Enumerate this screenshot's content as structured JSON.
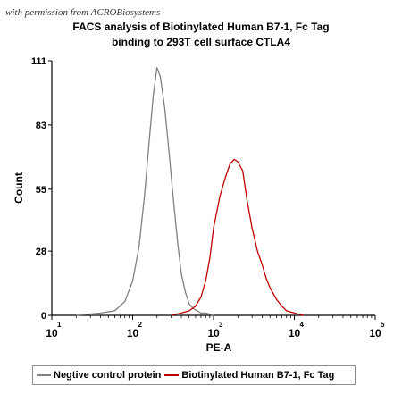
{
  "watermark": "with permission from ACROBiosystems",
  "chart_data": {
    "type": "line",
    "title_lines": [
      "FACS analysis of Biotinylated Human B7-1, Fc Tag",
      "binding to 293T cell surface CTLA4"
    ],
    "xlabel": "PE-A",
    "ylabel": "Count",
    "x_scale": "log",
    "xlim": [
      10,
      100000
    ],
    "ylim": [
      0,
      111
    ],
    "y_ticks": [
      0,
      28,
      55,
      83,
      111
    ],
    "x_ticks": [
      {
        "value": 10,
        "base": "10",
        "exp": "1"
      },
      {
        "value": 100,
        "base": "10",
        "exp": "2"
      },
      {
        "value": 1000,
        "base": "10",
        "exp": "3"
      },
      {
        "value": 10000,
        "base": "10",
        "exp": "4"
      },
      {
        "value": 100000,
        "base": "10",
        "exp": "5"
      }
    ],
    "series": [
      {
        "name": "Negtive control protein",
        "color": "#808080",
        "x": [
          20,
          40,
          60,
          80,
          100,
          120,
          140,
          160,
          180,
          200,
          220,
          250,
          280,
          320,
          360,
          400,
          450,
          500,
          560,
          630,
          700,
          800,
          1000
        ],
        "y": [
          0,
          1,
          2,
          6,
          15,
          30,
          52,
          76,
          96,
          108,
          104,
          90,
          72,
          50,
          32,
          18,
          10,
          5,
          3,
          2,
          1,
          1,
          0
        ]
      },
      {
        "name": "Biotinylated Human B7-1, Fc Tag",
        "color": "#c00000",
        "x": [
          300,
          400,
          500,
          600,
          700,
          800,
          900,
          1000,
          1200,
          1400,
          1600,
          1800,
          2000,
          2300,
          2600,
          3000,
          3500,
          4000,
          4500,
          5000,
          6000,
          7000,
          8000,
          10000,
          13000
        ],
        "y": [
          0,
          1,
          2,
          4,
          8,
          15,
          25,
          38,
          52,
          60,
          66,
          68,
          67,
          63,
          50,
          38,
          28,
          22,
          16,
          12,
          7,
          4,
          2,
          1,
          0
        ]
      }
    ],
    "legend_placement": "bottom",
    "grid": false
  }
}
